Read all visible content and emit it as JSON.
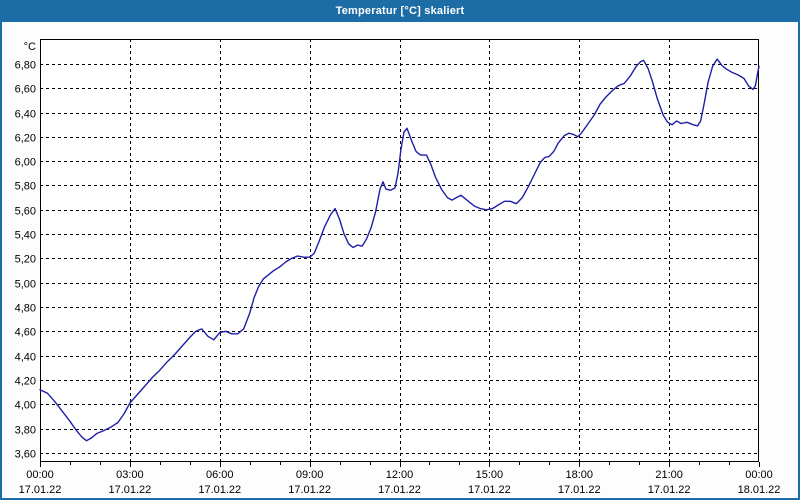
{
  "window": {
    "title": "Temperatur [°C] skaliert"
  },
  "colors": {
    "titlebar": "#1c6ca6",
    "window_border": "#1c6ca6",
    "title_text": "#ffffff",
    "plot_background": "#ffffff",
    "grid": "#000000",
    "axis": "#000000",
    "tick_text": "#000000",
    "line": "#1f1fa8"
  },
  "chart_data": {
    "type": "line",
    "title": "Temperatur [°C] skaliert",
    "xlabel": "",
    "ylabel": "°C",
    "grid": true,
    "legend": false,
    "ylim": [
      3.525,
      7.005
    ],
    "xlim_hours": [
      0,
      24
    ],
    "minor_tick_every_hours": 1,
    "major_tick_every_hours": 3,
    "y_ticks": [
      {
        "value": 6.8,
        "label": "6,80"
      },
      {
        "value": 6.6,
        "label": "6,60"
      },
      {
        "value": 6.4,
        "label": "6,40"
      },
      {
        "value": 6.2,
        "label": "6,20"
      },
      {
        "value": 6.0,
        "label": "6,00"
      },
      {
        "value": 5.8,
        "label": "5,80"
      },
      {
        "value": 5.6,
        "label": "5,60"
      },
      {
        "value": 5.4,
        "label": "5,40"
      },
      {
        "value": 5.2,
        "label": "5,20"
      },
      {
        "value": 5.0,
        "label": "5,00"
      },
      {
        "value": 4.8,
        "label": "4,80"
      },
      {
        "value": 4.6,
        "label": "4,60"
      },
      {
        "value": 4.4,
        "label": "4,40"
      },
      {
        "value": 4.2,
        "label": "4,20"
      },
      {
        "value": 4.0,
        "label": "4,00"
      },
      {
        "value": 3.8,
        "label": "3,80"
      },
      {
        "value": 3.6,
        "label": "3,60"
      }
    ],
    "x_ticks": [
      {
        "hours": 0,
        "time": "00:00",
        "date": "17.01.22"
      },
      {
        "hours": 3,
        "time": "03:00",
        "date": "17.01.22"
      },
      {
        "hours": 6,
        "time": "06:00",
        "date": "17.01.22"
      },
      {
        "hours": 9,
        "time": "09:00",
        "date": "17.01.22"
      },
      {
        "hours": 12,
        "time": "12:00",
        "date": "17.01.22"
      },
      {
        "hours": 15,
        "time": "15:00",
        "date": "17.01.22"
      },
      {
        "hours": 18,
        "time": "18:00",
        "date": "17.01.22"
      },
      {
        "hours": 21,
        "time": "21:00",
        "date": "17.01.22"
      },
      {
        "hours": 24,
        "time": "00:00",
        "date": "18.01.22"
      }
    ],
    "series": [
      {
        "name": "Temperatur",
        "color": "#1f1fa8",
        "points": [
          [
            0.0,
            4.12
          ],
          [
            0.25,
            4.09
          ],
          [
            0.5,
            4.02
          ],
          [
            0.75,
            3.94
          ],
          [
            1.0,
            3.86
          ],
          [
            1.2,
            3.79
          ],
          [
            1.4,
            3.73
          ],
          [
            1.55,
            3.7
          ],
          [
            1.7,
            3.72
          ],
          [
            1.9,
            3.76
          ],
          [
            2.1,
            3.78
          ],
          [
            2.35,
            3.81
          ],
          [
            2.6,
            3.85
          ],
          [
            2.8,
            3.92
          ],
          [
            3.0,
            4.01
          ],
          [
            3.25,
            4.08
          ],
          [
            3.5,
            4.15
          ],
          [
            3.75,
            4.22
          ],
          [
            4.0,
            4.28
          ],
          [
            4.25,
            4.35
          ],
          [
            4.5,
            4.41
          ],
          [
            4.75,
            4.48
          ],
          [
            5.0,
            4.55
          ],
          [
            5.2,
            4.6
          ],
          [
            5.4,
            4.62
          ],
          [
            5.6,
            4.56
          ],
          [
            5.8,
            4.53
          ],
          [
            6.0,
            4.59
          ],
          [
            6.2,
            4.6
          ],
          [
            6.4,
            4.58
          ],
          [
            6.6,
            4.58
          ],
          [
            6.8,
            4.62
          ],
          [
            7.0,
            4.75
          ],
          [
            7.15,
            4.88
          ],
          [
            7.3,
            4.97
          ],
          [
            7.45,
            5.03
          ],
          [
            7.6,
            5.06
          ],
          [
            7.8,
            5.1
          ],
          [
            8.0,
            5.13
          ],
          [
            8.2,
            5.17
          ],
          [
            8.4,
            5.2
          ],
          [
            8.6,
            5.22
          ],
          [
            8.8,
            5.21
          ],
          [
            9.0,
            5.21
          ],
          [
            9.15,
            5.24
          ],
          [
            9.3,
            5.33
          ],
          [
            9.5,
            5.46
          ],
          [
            9.7,
            5.56
          ],
          [
            9.85,
            5.61
          ],
          [
            10.0,
            5.52
          ],
          [
            10.15,
            5.4
          ],
          [
            10.3,
            5.32
          ],
          [
            10.45,
            5.29
          ],
          [
            10.6,
            5.31
          ],
          [
            10.75,
            5.3
          ],
          [
            10.9,
            5.36
          ],
          [
            11.05,
            5.45
          ],
          [
            11.2,
            5.58
          ],
          [
            11.35,
            5.77
          ],
          [
            11.45,
            5.83
          ],
          [
            11.55,
            5.77
          ],
          [
            11.7,
            5.76
          ],
          [
            11.85,
            5.78
          ],
          [
            11.95,
            5.9
          ],
          [
            12.05,
            6.1
          ],
          [
            12.15,
            6.24
          ],
          [
            12.25,
            6.27
          ],
          [
            12.4,
            6.17
          ],
          [
            12.55,
            6.08
          ],
          [
            12.7,
            6.05
          ],
          [
            12.9,
            6.05
          ],
          [
            13.05,
            5.97
          ],
          [
            13.2,
            5.87
          ],
          [
            13.4,
            5.77
          ],
          [
            13.6,
            5.7
          ],
          [
            13.75,
            5.68
          ],
          [
            13.9,
            5.7
          ],
          [
            14.05,
            5.72
          ],
          [
            14.3,
            5.67
          ],
          [
            14.5,
            5.63
          ],
          [
            14.7,
            5.61
          ],
          [
            14.9,
            5.6
          ],
          [
            15.1,
            5.61
          ],
          [
            15.3,
            5.64
          ],
          [
            15.5,
            5.67
          ],
          [
            15.7,
            5.67
          ],
          [
            15.9,
            5.65
          ],
          [
            16.1,
            5.7
          ],
          [
            16.3,
            5.79
          ],
          [
            16.5,
            5.89
          ],
          [
            16.7,
            5.99
          ],
          [
            16.85,
            6.03
          ],
          [
            17.0,
            6.04
          ],
          [
            17.15,
            6.08
          ],
          [
            17.3,
            6.15
          ],
          [
            17.5,
            6.21
          ],
          [
            17.65,
            6.23
          ],
          [
            17.8,
            6.22
          ],
          [
            17.95,
            6.2
          ],
          [
            18.1,
            6.24
          ],
          [
            18.3,
            6.31
          ],
          [
            18.5,
            6.38
          ],
          [
            18.7,
            6.47
          ],
          [
            18.9,
            6.53
          ],
          [
            19.1,
            6.58
          ],
          [
            19.3,
            6.62
          ],
          [
            19.5,
            6.64
          ],
          [
            19.7,
            6.7
          ],
          [
            19.9,
            6.78
          ],
          [
            20.05,
            6.82
          ],
          [
            20.15,
            6.83
          ],
          [
            20.3,
            6.76
          ],
          [
            20.45,
            6.65
          ],
          [
            20.6,
            6.52
          ],
          [
            20.8,
            6.38
          ],
          [
            20.95,
            6.32
          ],
          [
            21.1,
            6.3
          ],
          [
            21.25,
            6.33
          ],
          [
            21.4,
            6.31
          ],
          [
            21.6,
            6.32
          ],
          [
            21.8,
            6.3
          ],
          [
            21.95,
            6.29
          ],
          [
            22.05,
            6.33
          ],
          [
            22.15,
            6.45
          ],
          [
            22.3,
            6.65
          ],
          [
            22.45,
            6.78
          ],
          [
            22.6,
            6.84
          ],
          [
            22.75,
            6.79
          ],
          [
            22.9,
            6.76
          ],
          [
            23.1,
            6.73
          ],
          [
            23.3,
            6.71
          ],
          [
            23.5,
            6.68
          ],
          [
            23.65,
            6.62
          ],
          [
            23.8,
            6.59
          ],
          [
            23.88,
            6.62
          ],
          [
            23.95,
            6.72
          ],
          [
            24.0,
            6.78
          ]
        ]
      }
    ]
  }
}
